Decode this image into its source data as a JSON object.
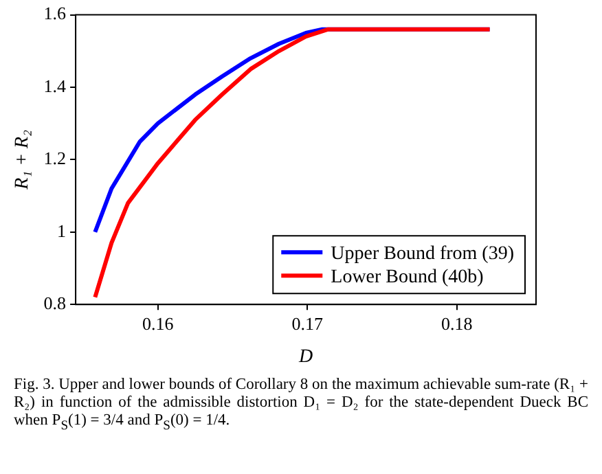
{
  "chart_data": {
    "type": "line",
    "xlabel": "D",
    "ylabel": "R₁ + R₂",
    "xlim": [
      0.1545,
      0.1853
    ],
    "xticks": [
      0.16,
      0.17,
      0.18
    ],
    "ylim": [
      0.8,
      1.6
    ],
    "yticks": [
      0.8,
      1,
      1.2,
      1.4,
      1.6
    ],
    "grid": false,
    "legend": "bottom right",
    "marker": "none",
    "line_style": "solid",
    "series": [
      {
        "name": "Upper Bound from (39)",
        "color": "#0000ff",
        "x": [
          0.1558,
          0.1569,
          0.1588,
          0.16,
          0.1625,
          0.1643,
          0.1662,
          0.1681,
          0.1699,
          0.171,
          0.1822
        ],
        "values": [
          1.0,
          1.12,
          1.25,
          1.3,
          1.38,
          1.43,
          1.48,
          1.52,
          1.55,
          1.56,
          1.56
        ]
      },
      {
        "name": "Lower Bound (40b)",
        "color": "#ff0000",
        "x": [
          0.1558,
          0.1569,
          0.158,
          0.16,
          0.1625,
          0.1643,
          0.1662,
          0.1681,
          0.1699,
          0.1714,
          0.1822
        ],
        "values": [
          0.82,
          0.97,
          1.08,
          1.19,
          1.31,
          1.38,
          1.45,
          1.5,
          1.54,
          1.56,
          1.56
        ]
      }
    ],
    "annotations": [
      "Fig. 3.  Upper and lower bounds of Corollary 8 on the maximum achievable sum-rate (R₁ + R₂) in function of the admissible distortion D₁ = D₂ for the state-dependent Dueck BC when P$_{S}$(1) = 3/4 and P$_{S}$(0) = 1/4."
    ]
  }
}
